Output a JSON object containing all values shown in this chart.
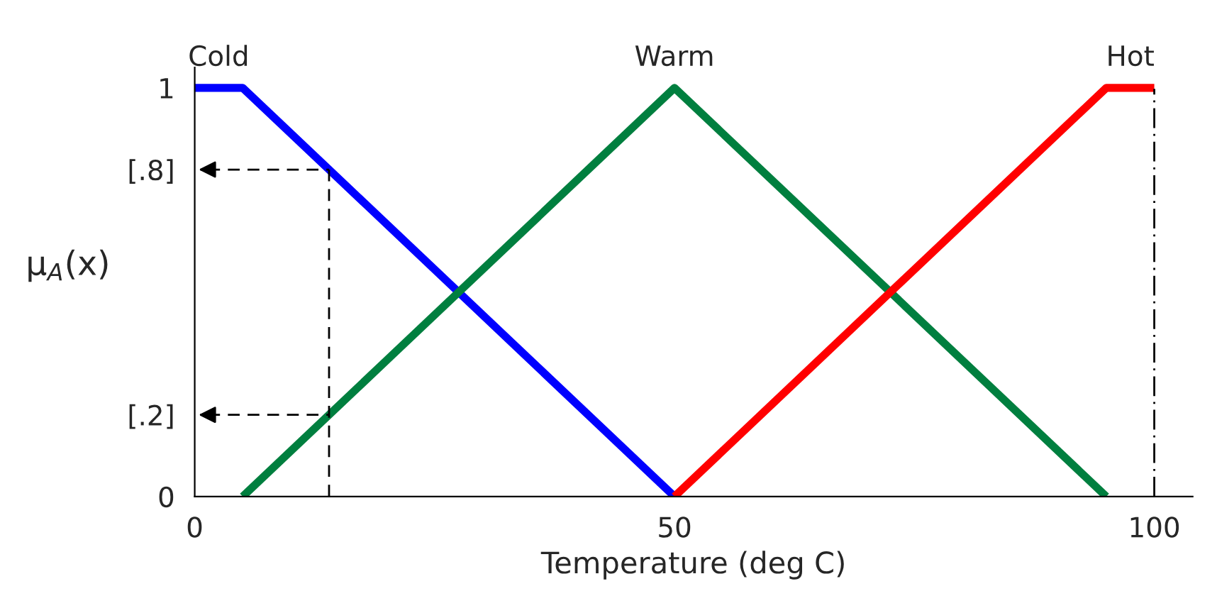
{
  "chart_data": {
    "type": "line",
    "xlabel": "Temperature (deg C)",
    "ylabel": "μ$_{A}$(x)",
    "xlim": [
      0,
      104
    ],
    "xticks": [
      0,
      50,
      100
    ],
    "ylim": [
      0,
      1.05
    ],
    "yticks": [
      0,
      {
        "value": 0.2,
        "label": "[.2]"
      },
      {
        "value": 0.8,
        "label": "[.8]"
      },
      1
    ],
    "grid": false,
    "legend": false,
    "marker": "none",
    "line_style": "solid",
    "series": [
      {
        "name": "Cold",
        "color": "#0000ff",
        "x": [
          0,
          5,
          50
        ],
        "values": [
          1,
          1,
          0
        ]
      },
      {
        "name": "Warm",
        "color": "#007f3f",
        "x": [
          5,
          50,
          95
        ],
        "values": [
          0,
          1,
          0
        ]
      },
      {
        "name": "Hot",
        "color": "#ff0000",
        "x": [
          50,
          95,
          100
        ],
        "values": [
          0,
          1,
          1
        ]
      }
    ],
    "ref_lines": [
      {
        "axis": "x",
        "value": 14,
        "line_style": "dashed",
        "color": "#000000"
      },
      {
        "axis": "y",
        "value": 0.8,
        "line_style": "dashed",
        "color": "#000000"
      },
      {
        "axis": "y",
        "value": 0.2,
        "line_style": "dashed",
        "color": "#000000"
      },
      {
        "axis": "x",
        "value": 100,
        "line_style": "dashdot",
        "color": "#000000"
      }
    ]
  }
}
